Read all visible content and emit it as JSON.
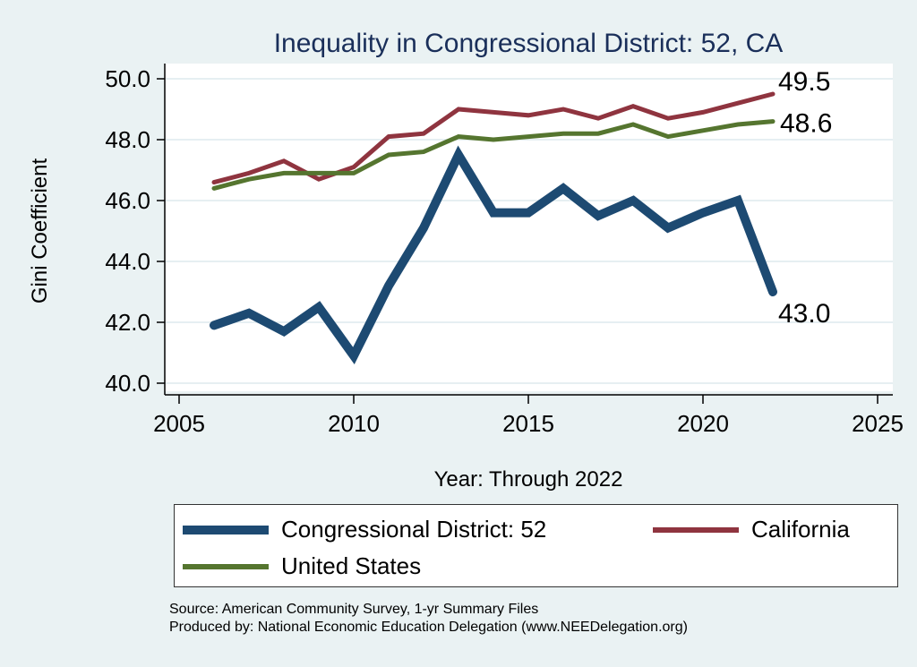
{
  "chart_data": {
    "type": "line",
    "title": "Inequality in Congressional District:  52, CA",
    "xlabel": "Year: Through 2022",
    "ylabel": "Gini Coefficient",
    "xlim": [
      2005,
      2025
    ],
    "ylim": [
      40,
      50
    ],
    "xticks": [
      2005,
      2010,
      2015,
      2020,
      2025
    ],
    "yticks": [
      "40.0",
      "42.0",
      "44.0",
      "46.0",
      "48.0",
      "50.0"
    ],
    "grid": true,
    "legend_position": "bottom",
    "x": [
      2006,
      2007,
      2008,
      2009,
      2010,
      2011,
      2012,
      2013,
      2014,
      2015,
      2016,
      2017,
      2018,
      2019,
      2020,
      2021,
      2022
    ],
    "series": [
      {
        "name": "Congressional District:  52",
        "color": "#1d4a72",
        "values": [
          41.9,
          42.3,
          41.7,
          42.5,
          40.9,
          43.2,
          45.1,
          47.5,
          45.6,
          45.6,
          46.4,
          45.5,
          46.0,
          45.1,
          45.6,
          46.0,
          43.0
        ],
        "end_label": "43.0"
      },
      {
        "name": "California",
        "color": "#8f343f",
        "values": [
          46.6,
          46.9,
          47.3,
          46.7,
          47.1,
          48.1,
          48.2,
          49.0,
          48.9,
          48.8,
          49.0,
          48.7,
          49.1,
          48.7,
          48.9,
          49.2,
          49.5
        ],
        "end_label": "49.5"
      },
      {
        "name": "United States",
        "color": "#55752f",
        "values": [
          46.4,
          46.7,
          46.9,
          46.9,
          46.9,
          47.5,
          47.6,
          48.1,
          48.0,
          48.1,
          48.2,
          48.2,
          48.5,
          48.1,
          48.3,
          48.5,
          48.6
        ],
        "end_label": "48.6"
      }
    ]
  },
  "footer": {
    "source": "Source: American Community Survey, 1-yr Summary Files",
    "produced_by": "Produced by: National Economic Education Delegation (www.NEEDelegation.org)"
  }
}
